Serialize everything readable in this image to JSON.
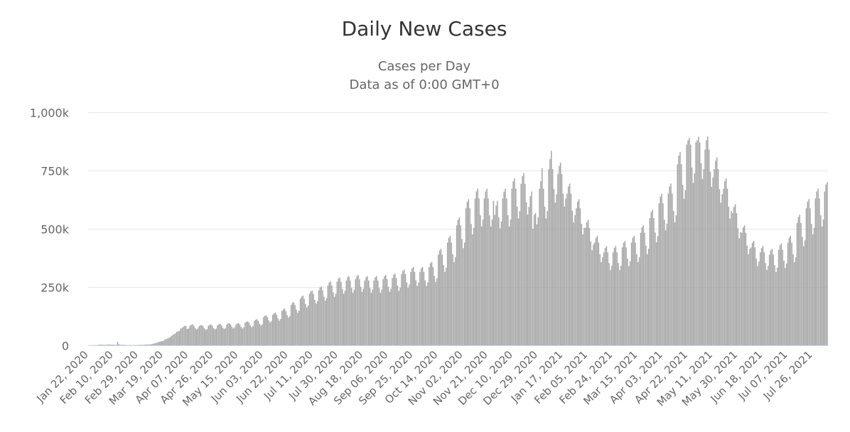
{
  "chart_data": {
    "type": "bar",
    "title": "Daily New Cases",
    "subtitle": [
      "Cases per Day",
      "Data as of 0:00 GMT+0"
    ],
    "xlabel": "",
    "ylabel": "",
    "ylim": [
      0,
      1000
    ],
    "value_unit": "thousands",
    "grid": true,
    "legend": "none",
    "start_date": "Jan 22, 2020",
    "day_step_between_ticks": 19,
    "y_tick_values": [
      0,
      250,
      500,
      750,
      1000
    ],
    "y_tick_labels": [
      "0",
      "250k",
      "500k",
      "750k",
      "1,000k"
    ],
    "x_tick_labels": [
      "Jan 22, 2020",
      "Feb 10, 2020",
      "Feb 29, 2020",
      "Mar 19, 2020",
      "Apr 07, 2020",
      "Apr 26, 2020",
      "May 15, 2020",
      "Jun 03, 2020",
      "Jun 22, 2020",
      "Jul 11, 2020",
      "Jul 30, 2020",
      "Aug 18, 2020",
      "Sep 06, 2020",
      "Sep 25, 2020",
      "Oct 14, 2020",
      "Nov 02, 2020",
      "Nov 21, 2020",
      "Dec 10, 2020",
      "Dec 29, 2020",
      "Jan 17, 2021",
      "Feb 05, 2021",
      "Feb 24, 2021",
      "Mar 15, 2021",
      "Apr 03, 2021",
      "Apr 22, 2021",
      "May 11, 2021",
      "May 30, 2021",
      "Jun 18, 2021",
      "Jul 07, 2021",
      "Jul 26, 2021"
    ],
    "bar_color": "#a3a3a3",
    "values": [
      0.5,
      0.6,
      0.7,
      0.7,
      0.8,
      1,
      0.8,
      2,
      2,
      3,
      3,
      2,
      2,
      2,
      3,
      3,
      3,
      3,
      3,
      2,
      2,
      2,
      15,
      4,
      2,
      2,
      2,
      2,
      1,
      1,
      1,
      1,
      1,
      1,
      1,
      1,
      1,
      1,
      2,
      2,
      2,
      2,
      2,
      3,
      3,
      3,
      4,
      4,
      5,
      7,
      8,
      10,
      12,
      14,
      15,
      17,
      18,
      20,
      25,
      27,
      30,
      32,
      35,
      40,
      45,
      48,
      52,
      58,
      60,
      62,
      72,
      75,
      80,
      84,
      82,
      70,
      72,
      84,
      88,
      90,
      84,
      74,
      68,
      72,
      82,
      86,
      87,
      82,
      73,
      66,
      70,
      84,
      88,
      90,
      84,
      74,
      68,
      72,
      86,
      90,
      92,
      86,
      76,
      70,
      74,
      89,
      94,
      95,
      89,
      79,
      72,
      77,
      89,
      94,
      95,
      89,
      79,
      72,
      77,
      97,
      101,
      103,
      97,
      86,
      78,
      83,
      105,
      110,
      112,
      105,
      93,
      85,
      90,
      121,
      127,
      129,
      121,
      107,
      98,
      104,
      131,
      138,
      140,
      131,
      116,
      106,
      113,
      147,
      154,
      157,
      147,
      130,
      119,
      126,
      173,
      182,
      185,
      173,
      153,
      140,
      149,
      200,
      209,
      213,
      200,
      177,
      162,
      171,
      221,
      231,
      235,
      221,
      195,
      179,
      189,
      236,
      248,
      252,
      236,
      209,
      191,
      203,
      257,
      270,
      274,
      257,
      228,
      208,
      221,
      273,
      286,
      291,
      273,
      242,
      221,
      234,
      278,
      292,
      297,
      278,
      246,
      225,
      239,
      284,
      297,
      302,
      284,
      251,
      230,
      243,
      278,
      292,
      297,
      278,
      246,
      225,
      239,
      278,
      292,
      297,
      278,
      246,
      225,
      239,
      284,
      297,
      302,
      284,
      251,
      230,
      243,
      289,
      303,
      308,
      289,
      256,
      234,
      248,
      305,
      319,
      325,
      305,
      270,
      247,
      261,
      315,
      330,
      336,
      315,
      279,
      255,
      270,
      315,
      330,
      336,
      315,
      279,
      255,
      270,
      336,
      352,
      358,
      336,
      298,
      272,
      288,
      389,
      407,
      414,
      389,
      344,
      315,
      333,
      441,
      462,
      470,
      441,
      391,
      357,
      378,
      515,
      539,
      549,
      515,
      456,
      417,
      441,
      588,
      616,
      627,
      588,
      521,
      476,
      504,
      630,
      660,
      672,
      630,
      558,
      510,
      540,
      630,
      660,
      672,
      630,
      558,
      510,
      540,
      620,
      560,
      600,
      620,
      549,
      502,
      531,
      630,
      660,
      672,
      630,
      558,
      510,
      540,
      672,
      704,
      717,
      672,
      595,
      544,
      576,
      693,
      726,
      739,
      693,
      614,
      561,
      594,
      640,
      660,
      500,
      560,
      567,
      519,
      549,
      672,
      704,
      760,
      672,
      595,
      544,
      576,
      756,
      800,
      835,
      756,
      670,
      612,
      648,
      735,
      770,
      784,
      735,
      651,
      595,
      630,
      651,
      682,
      694,
      651,
      577,
      527,
      558,
      588,
      616,
      627,
      588,
      521,
      476,
      504,
      504,
      528,
      538,
      504,
      446,
      408,
      432,
      441,
      462,
      470,
      441,
      391,
      357,
      378,
      399,
      418,
      426,
      399,
      353,
      323,
      342,
      399,
      418,
      426,
      399,
      353,
      323,
      342,
      420,
      440,
      448,
      420,
      372,
      340,
      360,
      441,
      462,
      470,
      441,
      391,
      357,
      378,
      483,
      506,
      515,
      483,
      428,
      391,
      414,
      546,
      572,
      582,
      546,
      484,
      442,
      468,
      609,
      638,
      650,
      609,
      539,
      493,
      522,
      651,
      682,
      694,
      651,
      577,
      527,
      558,
      777,
      814,
      829,
      777,
      688,
      629,
      666,
      861,
      880,
      890,
      861,
      763,
      697,
      738,
      870,
      880,
      895,
      870,
      781,
      714,
      756,
      840,
      880,
      896,
      840,
      744,
      680,
      720,
      756,
      792,
      806,
      756,
      670,
      612,
      648,
      672,
      704,
      717,
      672,
      595,
      544,
      576,
      567,
      594,
      605,
      567,
      502,
      459,
      486,
      483,
      506,
      515,
      483,
      428,
      391,
      414,
      420,
      440,
      448,
      420,
      372,
      340,
      360,
      399,
      418,
      426,
      399,
      353,
      323,
      342,
      389,
      407,
      414,
      389,
      344,
      315,
      333,
      410,
      429,
      437,
      410,
      363,
      332,
      351,
      441,
      462,
      470,
      441,
      391,
      357,
      378,
      525,
      550,
      560,
      525,
      465,
      425,
      450,
      588,
      616,
      627,
      588,
      521,
      476,
      504,
      630,
      660,
      672,
      630,
      558,
      510,
      540,
      660,
      690,
      700
    ]
  }
}
